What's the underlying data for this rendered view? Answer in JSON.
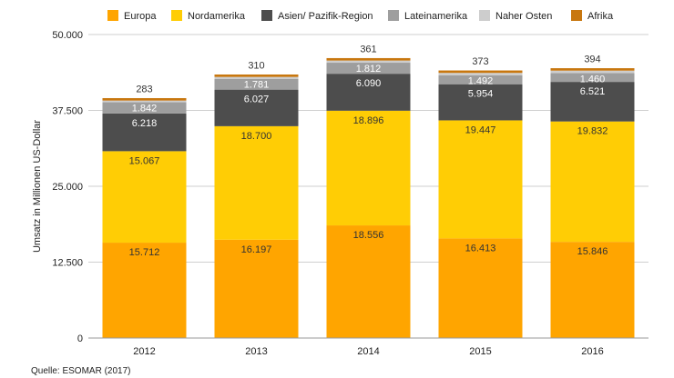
{
  "chart_data": {
    "type": "bar",
    "stacked": true,
    "title": "",
    "xlabel": "",
    "ylabel": "Umsatz in Millionen US-Dollar",
    "ylim": [
      0,
      50000
    ],
    "yticks": [
      0,
      12500,
      25000,
      37500,
      50000
    ],
    "ytick_labels": [
      "0",
      "12.500",
      "25.000",
      "37.500",
      "50.000"
    ],
    "categories": [
      "2012",
      "2013",
      "2014",
      "2015",
      "2016"
    ],
    "legend_position": "top",
    "series": [
      {
        "name": "Europa",
        "color": "#FFA500",
        "values": [
          15712,
          16197,
          18556,
          16413,
          15846
        ],
        "labels": [
          "15.712",
          "16.197",
          "18.556",
          "16.413",
          "15.846"
        ]
      },
      {
        "name": "Nordamerika",
        "color": "#FFCD05",
        "values": [
          15067,
          18700,
          18896,
          19447,
          19832
        ],
        "labels": [
          "15.067",
          "18.700",
          "18.896",
          "19.447",
          "19.832"
        ]
      },
      {
        "name": "Asien/ Pazifik-Region",
        "color": "#4D4D4D",
        "values": [
          6218,
          6027,
          6090,
          5954,
          6521
        ],
        "labels": [
          "6.218",
          "6.027",
          "6.090",
          "5.954",
          "6.521"
        ]
      },
      {
        "name": "Lateinamerika",
        "color": "#9E9E9E",
        "values": [
          1842,
          1781,
          1812,
          1492,
          1460
        ],
        "labels": [
          "1.842",
          "1.781",
          "1.812",
          "1.492",
          "1.460"
        ]
      },
      {
        "name": "Naher Osten",
        "color": "#CDCDCD",
        "values": [
          283,
          310,
          361,
          373,
          394
        ],
        "labels": [
          "283",
          "310",
          "361",
          "373",
          "394"
        ]
      },
      {
        "name": "Afrika",
        "color": "#C8770F",
        "values": [
          400,
          400,
          400,
          400,
          400
        ],
        "labels": []
      }
    ],
    "source": "Quelle: ESOMAR (2017)"
  }
}
